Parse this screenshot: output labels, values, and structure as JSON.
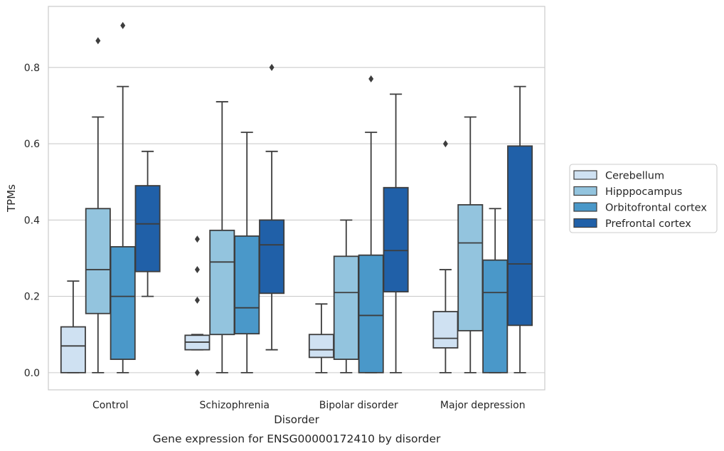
{
  "chart_data": {
    "type": "boxplot",
    "caption": "Gene expression for ENSG00000172410 by disorder",
    "xlabel": "Disorder",
    "ylabel": "TPMs",
    "ylim": [
      -0.045,
      0.96
    ],
    "yticks": [
      0.0,
      0.2,
      0.4,
      0.6,
      0.8
    ],
    "ytick_labels": [
      "0.0",
      "0.2",
      "0.4",
      "0.6",
      "0.8"
    ],
    "grid": "horizontal",
    "legend_position": "right",
    "categories": [
      "Control",
      "Schizophrenia",
      "Bipolar disorder",
      "Major depression"
    ],
    "series": [
      {
        "name": "Cerebellum",
        "color": "#cfe1f2",
        "boxes": [
          {
            "whislo": 0.0,
            "q1": 0.0,
            "med": 0.07,
            "q3": 0.12,
            "whishi": 0.24,
            "fliers": []
          },
          {
            "whislo": 0.06,
            "q1": 0.06,
            "med": 0.08,
            "q3": 0.098,
            "whishi": 0.1,
            "fliers": [
              0.35,
              0.27,
              0.19,
              0.0
            ]
          },
          {
            "whislo": 0.0,
            "q1": 0.04,
            "med": 0.06,
            "q3": 0.1,
            "whishi": 0.18,
            "fliers": []
          },
          {
            "whislo": 0.0,
            "q1": 0.065,
            "med": 0.09,
            "q3": 0.16,
            "whishi": 0.27,
            "fliers": [
              0.6
            ]
          }
        ]
      },
      {
        "name": "Hipppocampus",
        "color": "#93c4de",
        "boxes": [
          {
            "whislo": 0.0,
            "q1": 0.155,
            "med": 0.27,
            "q3": 0.43,
            "whishi": 0.67,
            "fliers": [
              0.87
            ]
          },
          {
            "whislo": 0.0,
            "q1": 0.1,
            "med": 0.29,
            "q3": 0.373,
            "whishi": 0.71,
            "fliers": []
          },
          {
            "whislo": 0.0,
            "q1": 0.035,
            "med": 0.21,
            "q3": 0.305,
            "whishi": 0.4,
            "fliers": []
          },
          {
            "whislo": 0.0,
            "q1": 0.11,
            "med": 0.34,
            "q3": 0.44,
            "whishi": 0.67,
            "fliers": []
          }
        ]
      },
      {
        "name": "Orbitofrontal cortex",
        "color": "#4a98c9",
        "boxes": [
          {
            "whislo": 0.0,
            "q1": 0.035,
            "med": 0.2,
            "q3": 0.33,
            "whishi": 0.75,
            "fliers": [
              0.91
            ]
          },
          {
            "whislo": 0.0,
            "q1": 0.102,
            "med": 0.17,
            "q3": 0.358,
            "whishi": 0.63,
            "fliers": []
          },
          {
            "whislo": 0.0,
            "q1": 0.0,
            "med": 0.15,
            "q3": 0.308,
            "whishi": 0.63,
            "fliers": [
              0.77
            ]
          },
          {
            "whislo": 0.0,
            "q1": 0.0,
            "med": 0.21,
            "q3": 0.295,
            "whishi": 0.43,
            "fliers": []
          }
        ]
      },
      {
        "name": "Prefrontal cortex",
        "color": "#2060a8",
        "boxes": [
          {
            "whislo": 0.2,
            "q1": 0.265,
            "med": 0.39,
            "q3": 0.49,
            "whishi": 0.58,
            "fliers": []
          },
          {
            "whislo": 0.06,
            "q1": 0.208,
            "med": 0.335,
            "q3": 0.4,
            "whishi": 0.58,
            "fliers": [
              0.8
            ]
          },
          {
            "whislo": 0.0,
            "q1": 0.212,
            "med": 0.32,
            "q3": 0.485,
            "whishi": 0.73,
            "fliers": []
          },
          {
            "whislo": 0.0,
            "q1": 0.124,
            "med": 0.285,
            "q3": 0.594,
            "whishi": 0.75,
            "fliers": []
          }
        ]
      }
    ]
  }
}
